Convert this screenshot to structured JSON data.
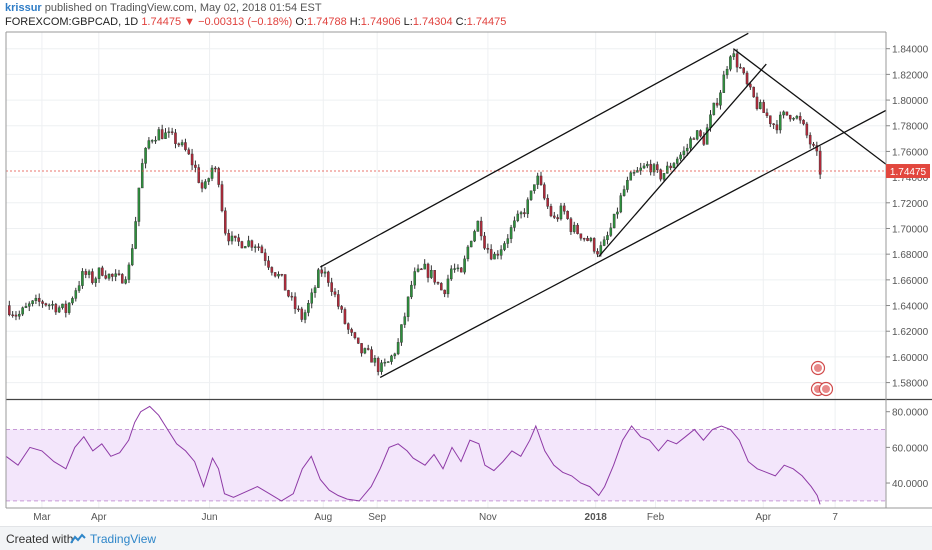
{
  "header": {
    "author": "krissur",
    "published_text": " published on TradingView.com, May 02, 2018 01:54 EST",
    "symbol": "FOREXCOM:GBPCAD, 1D",
    "last": "1.74475",
    "change": "▼ −0.00313 (−0.18%)",
    "ohlc": [
      {
        "label": "O:",
        "value": "1.74788"
      },
      {
        "label": "H:",
        "value": "1.74906"
      },
      {
        "label": "L:",
        "value": "1.74304"
      },
      {
        "label": "C:",
        "value": "1.74475"
      }
    ]
  },
  "footer": {
    "created": "Created with",
    "brand": "TradingView"
  },
  "chart_data": {
    "type": "candlestick",
    "symbol": "FOREXCOM:GBPCAD",
    "timeframe": "1D",
    "price_axis": {
      "ticks": [
        "1.84000",
        "1.82000",
        "1.80000",
        "1.78000",
        "1.76000",
        "1.74000",
        "1.72000",
        "1.70000",
        "1.68000",
        "1.66000",
        "1.64000",
        "1.62000",
        "1.60000",
        "1.58000"
      ],
      "range": [
        1.568,
        1.853
      ],
      "current_label": "1.74475",
      "current_value": 1.74475
    },
    "time_axis": {
      "ticks": [
        {
          "label": "Mar",
          "t": 0.06
        },
        {
          "label": "Apr",
          "t": 0.155
        },
        {
          "label": "Jun",
          "t": 0.34
        },
        {
          "label": "Aug",
          "t": 0.53
        },
        {
          "label": "Sep",
          "t": 0.62
        },
        {
          "label": "Nov",
          "t": 0.805
        },
        {
          "label": "2018",
          "t": 0.985,
          "bold": true
        },
        {
          "label": "Feb",
          "t": 1.085
        },
        {
          "label": "Apr",
          "t": 1.265
        },
        {
          "label": "7",
          "t": 1.385
        }
      ],
      "range": [
        0,
        1.47
      ]
    },
    "price_path": [
      [
        0.0,
        1.64
      ],
      [
        0.02,
        1.632
      ],
      [
        0.04,
        1.64
      ],
      [
        0.06,
        1.643
      ],
      [
        0.08,
        1.64
      ],
      [
        0.1,
        1.636
      ],
      [
        0.115,
        1.652
      ],
      [
        0.13,
        1.665
      ],
      [
        0.145,
        1.66
      ],
      [
        0.16,
        1.668
      ],
      [
        0.175,
        1.662
      ],
      [
        0.19,
        1.66
      ],
      [
        0.205,
        1.668
      ],
      [
        0.215,
        1.7
      ],
      [
        0.225,
        1.745
      ],
      [
        0.24,
        1.77
      ],
      [
        0.255,
        1.775
      ],
      [
        0.27,
        1.772
      ],
      [
        0.285,
        1.768
      ],
      [
        0.3,
        1.76
      ],
      [
        0.315,
        1.748
      ],
      [
        0.33,
        1.728
      ],
      [
        0.345,
        1.748
      ],
      [
        0.355,
        1.74
      ],
      [
        0.365,
        1.7
      ],
      [
        0.38,
        1.688
      ],
      [
        0.4,
        1.69
      ],
      [
        0.42,
        1.688
      ],
      [
        0.44,
        1.672
      ],
      [
        0.46,
        1.66
      ],
      [
        0.48,
        1.64
      ],
      [
        0.495,
        1.63
      ],
      [
        0.51,
        1.645
      ],
      [
        0.525,
        1.668
      ],
      [
        0.54,
        1.66
      ],
      [
        0.555,
        1.64
      ],
      [
        0.57,
        1.622
      ],
      [
        0.59,
        1.605
      ],
      [
        0.61,
        1.6
      ],
      [
        0.625,
        1.59
      ],
      [
        0.64,
        1.596
      ],
      [
        0.655,
        1.61
      ],
      [
        0.67,
        1.64
      ],
      [
        0.68,
        1.662
      ],
      [
        0.7,
        1.668
      ],
      [
        0.715,
        1.662
      ],
      [
        0.73,
        1.65
      ],
      [
        0.745,
        1.67
      ],
      [
        0.76,
        1.662
      ],
      [
        0.775,
        1.692
      ],
      [
        0.79,
        1.706
      ],
      [
        0.8,
        1.688
      ],
      [
        0.815,
        1.678
      ],
      [
        0.83,
        1.688
      ],
      [
        0.845,
        1.7
      ],
      [
        0.86,
        1.71
      ],
      [
        0.875,
        1.722
      ],
      [
        0.885,
        1.742
      ],
      [
        0.9,
        1.722
      ],
      [
        0.915,
        1.706
      ],
      [
        0.93,
        1.715
      ],
      [
        0.945,
        1.7
      ],
      [
        0.96,
        1.696
      ],
      [
        0.975,
        1.69
      ],
      [
        0.99,
        1.682
      ],
      [
        1.0,
        1.688
      ],
      [
        1.015,
        1.705
      ],
      [
        1.03,
        1.728
      ],
      [
        1.045,
        1.74
      ],
      [
        1.06,
        1.745
      ],
      [
        1.075,
        1.75
      ],
      [
        1.09,
        1.74
      ],
      [
        1.105,
        1.746
      ],
      [
        1.12,
        1.755
      ],
      [
        1.135,
        1.76
      ],
      [
        1.15,
        1.775
      ],
      [
        1.165,
        1.768
      ],
      [
        1.18,
        1.79
      ],
      [
        1.195,
        1.81
      ],
      [
        1.21,
        1.838
      ],
      [
        1.225,
        1.826
      ],
      [
        1.24,
        1.808
      ],
      [
        1.255,
        1.796
      ],
      [
        1.27,
        1.788
      ],
      [
        1.285,
        1.78
      ],
      [
        1.3,
        1.788
      ],
      [
        1.315,
        1.79
      ],
      [
        1.33,
        1.78
      ],
      [
        1.345,
        1.765
      ],
      [
        1.355,
        1.755
      ],
      [
        1.36,
        1.7448
      ]
    ],
    "rsi": {
      "ticks": [
        "80.0000",
        "60.0000",
        "40.0000"
      ],
      "range": [
        26,
        86
      ],
      "band": [
        30,
        70
      ],
      "path": [
        [
          0.0,
          55
        ],
        [
          0.02,
          50
        ],
        [
          0.04,
          60
        ],
        [
          0.06,
          58
        ],
        [
          0.08,
          52
        ],
        [
          0.1,
          48
        ],
        [
          0.115,
          60
        ],
        [
          0.13,
          66
        ],
        [
          0.145,
          58
        ],
        [
          0.16,
          62
        ],
        [
          0.175,
          55
        ],
        [
          0.19,
          57
        ],
        [
          0.205,
          64
        ],
        [
          0.215,
          74
        ],
        [
          0.225,
          80
        ],
        [
          0.24,
          83
        ],
        [
          0.255,
          78
        ],
        [
          0.27,
          70
        ],
        [
          0.285,
          62
        ],
        [
          0.3,
          58
        ],
        [
          0.315,
          52
        ],
        [
          0.33,
          38
        ],
        [
          0.345,
          54
        ],
        [
          0.355,
          48
        ],
        [
          0.365,
          34
        ],
        [
          0.38,
          32
        ],
        [
          0.4,
          35
        ],
        [
          0.42,
          38
        ],
        [
          0.44,
          34
        ],
        [
          0.46,
          30
        ],
        [
          0.48,
          34
        ],
        [
          0.495,
          48
        ],
        [
          0.51,
          55
        ],
        [
          0.525,
          42
        ],
        [
          0.54,
          36
        ],
        [
          0.555,
          33
        ],
        [
          0.57,
          31
        ],
        [
          0.59,
          30
        ],
        [
          0.61,
          38
        ],
        [
          0.625,
          48
        ],
        [
          0.64,
          60
        ],
        [
          0.655,
          62
        ],
        [
          0.67,
          58
        ],
        [
          0.68,
          54
        ],
        [
          0.7,
          50
        ],
        [
          0.715,
          56
        ],
        [
          0.73,
          48
        ],
        [
          0.745,
          60
        ],
        [
          0.76,
          52
        ],
        [
          0.775,
          64
        ],
        [
          0.79,
          62
        ],
        [
          0.8,
          50
        ],
        [
          0.815,
          47
        ],
        [
          0.83,
          52
        ],
        [
          0.845,
          58
        ],
        [
          0.86,
          55
        ],
        [
          0.875,
          64
        ],
        [
          0.885,
          72
        ],
        [
          0.9,
          58
        ],
        [
          0.915,
          50
        ],
        [
          0.93,
          46
        ],
        [
          0.945,
          44
        ],
        [
          0.96,
          40
        ],
        [
          0.975,
          38
        ],
        [
          0.99,
          33
        ],
        [
          1.0,
          38
        ],
        [
          1.015,
          50
        ],
        [
          1.03,
          64
        ],
        [
          1.045,
          72
        ],
        [
          1.06,
          66
        ],
        [
          1.075,
          64
        ],
        [
          1.09,
          58
        ],
        [
          1.105,
          64
        ],
        [
          1.12,
          62
        ],
        [
          1.135,
          66
        ],
        [
          1.15,
          70
        ],
        [
          1.165,
          64
        ],
        [
          1.18,
          70
        ],
        [
          1.195,
          72
        ],
        [
          1.21,
          70
        ],
        [
          1.225,
          64
        ],
        [
          1.24,
          52
        ],
        [
          1.255,
          48
        ],
        [
          1.27,
          46
        ],
        [
          1.285,
          44
        ],
        [
          1.3,
          50
        ],
        [
          1.315,
          48
        ],
        [
          1.33,
          44
        ],
        [
          1.345,
          38
        ],
        [
          1.355,
          33
        ],
        [
          1.36,
          28
        ]
      ]
    },
    "trendlines": [
      {
        "name": "channel-top",
        "from": [
          0.525,
          1.67
        ],
        "to": [
          1.24,
          1.852
        ]
      },
      {
        "name": "channel-bottom",
        "from": [
          0.625,
          1.584
        ],
        "to": [
          1.47,
          1.792
        ]
      },
      {
        "name": "support-line",
        "from": [
          0.99,
          1.678
        ],
        "to": [
          1.27,
          1.828
        ]
      },
      {
        "name": "descending-line",
        "from": [
          1.215,
          1.84
        ],
        "to": [
          1.47,
          1.75
        ]
      }
    ]
  }
}
